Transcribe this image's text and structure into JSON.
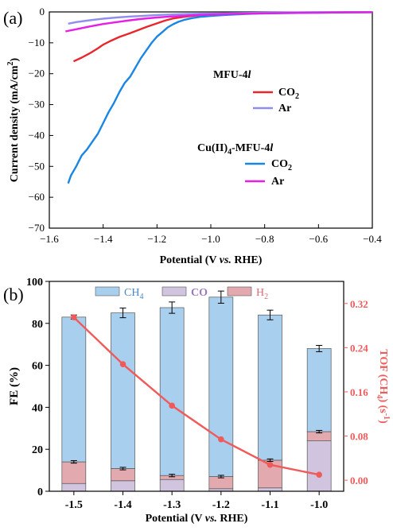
{
  "chart_data": [
    {
      "panel": "(a)",
      "type": "line",
      "xlabel": "Potential (V vs. RHE)",
      "ylabel": "Current density (mA/cm²)",
      "xlim": [
        -1.6,
        -0.4
      ],
      "ylim": [
        -70,
        0
      ],
      "xticks": [
        -1.6,
        -1.4,
        -1.2,
        -1.0,
        -0.8,
        -0.6,
        -0.4
      ],
      "yticks": [
        0,
        -10,
        -20,
        -30,
        -40,
        -50,
        -60,
        -70
      ],
      "legend_groups": [
        "MFU-4l",
        "Cu(II)4-MFU-4l"
      ],
      "series": [
        {
          "name": "CO2",
          "group": "MFU-4l",
          "color": "#e8262b",
          "x": [
            -1.51,
            -1.48,
            -1.45,
            -1.42,
            -1.4,
            -1.37,
            -1.34,
            -1.3,
            -1.27,
            -1.24,
            -1.2,
            -1.17,
            -1.14,
            -1.1,
            -1.06,
            -1.02,
            -0.98,
            -0.94,
            -0.9,
            -0.85,
            -0.8,
            -0.7,
            -0.6,
            -0.5,
            -0.4
          ],
          "y": [
            -16.0,
            -14.8,
            -13.4,
            -11.8,
            -10.6,
            -9.3,
            -8.1,
            -6.9,
            -5.9,
            -4.9,
            -3.7,
            -2.8,
            -2.1,
            -1.6,
            -1.2,
            -0.95,
            -0.8,
            -0.65,
            -0.55,
            -0.45,
            -0.35,
            -0.25,
            -0.18,
            -0.12,
            -0.08
          ]
        },
        {
          "name": "Ar",
          "group": "MFU-4l",
          "color": "#8f8ef0",
          "x": [
            -1.53,
            -1.5,
            -1.45,
            -1.4,
            -1.35,
            -1.3,
            -1.25,
            -1.2,
            -1.15,
            -1.1,
            -1.05,
            -1.0,
            -0.9,
            -0.8,
            -0.7,
            -0.6,
            -0.5,
            -0.4
          ],
          "y": [
            -3.8,
            -3.3,
            -2.7,
            -2.2,
            -1.8,
            -1.5,
            -1.25,
            -1.0,
            -0.85,
            -0.7,
            -0.6,
            -0.5,
            -0.35,
            -0.25,
            -0.18,
            -0.12,
            -0.08,
            -0.05
          ]
        },
        {
          "name": "CO2",
          "group": "Cu(II)4-MFU-4l",
          "color": "#1a86e4",
          "x": [
            -1.53,
            -1.52,
            -1.5,
            -1.48,
            -1.46,
            -1.44,
            -1.42,
            -1.4,
            -1.38,
            -1.36,
            -1.34,
            -1.32,
            -1.3,
            -1.28,
            -1.26,
            -1.24,
            -1.22,
            -1.2,
            -1.18,
            -1.16,
            -1.14,
            -1.12,
            -1.1,
            -1.07,
            -1.04,
            -1.0,
            -0.95,
            -0.9,
            -0.85,
            -0.8,
            -0.7,
            -0.6,
            -0.5,
            -0.4
          ],
          "y": [
            -55.5,
            -53.0,
            -50.0,
            -46.5,
            -44.5,
            -42.0,
            -39.5,
            -36.0,
            -32.5,
            -29.5,
            -26.0,
            -23.0,
            -21.0,
            -18.0,
            -15.0,
            -12.5,
            -10.0,
            -8.0,
            -6.5,
            -5.0,
            -4.0,
            -3.2,
            -2.6,
            -2.0,
            -1.6,
            -1.3,
            -1.0,
            -0.8,
            -0.6,
            -0.5,
            -0.35,
            -0.25,
            -0.15,
            -0.1
          ]
        },
        {
          "name": "Ar",
          "group": "Cu(II)4-MFU-4l",
          "color": "#e61ee6",
          "x": [
            -1.54,
            -1.5,
            -1.45,
            -1.4,
            -1.35,
            -1.3,
            -1.25,
            -1.2,
            -1.15,
            -1.1,
            -1.05,
            -1.0,
            -0.9,
            -0.8,
            -0.7,
            -0.6,
            -0.5,
            -0.4
          ],
          "y": [
            -6.3,
            -5.6,
            -4.7,
            -3.9,
            -3.3,
            -2.7,
            -2.2,
            -1.8,
            -1.5,
            -1.25,
            -1.0,
            -0.85,
            -0.6,
            -0.45,
            -0.32,
            -0.22,
            -0.15,
            -0.1
          ]
        }
      ]
    },
    {
      "panel": "(b)",
      "type": "bar",
      "stacked": true,
      "xlabel": "Potential (V vs. RHE)",
      "ylabel": "FE (%)",
      "y2label": "TOF (CH4) (s-1)",
      "categories": [
        "-1.5",
        "-1.4",
        "-1.3",
        "-1.2",
        "-1.1",
        "-1.0"
      ],
      "ylim": [
        0,
        100
      ],
      "yticks": [
        0,
        20,
        40,
        60,
        80,
        100
      ],
      "y2lim": [
        -0.02,
        0.36
      ],
      "y2ticks": [
        "0.00",
        "0.08",
        "0.16",
        "0.24",
        "0.32"
      ],
      "legend": [
        "CH4",
        "CO",
        "H2"
      ],
      "colors": {
        "CH4": "#a9cfee",
        "CO": "#d1c4de",
        "H2": "#e2a9ae",
        "TOF": "#f05a5a"
      },
      "fe_total": [
        83.0,
        85.0,
        87.5,
        92.5,
        84.0,
        68.0
      ],
      "fe_total_err": [
        1.0,
        2.3,
        2.7,
        2.9,
        2.3,
        1.5
      ],
      "fe_co": [
        3.7,
        5.0,
        5.6,
        1.2,
        1.6,
        24.0
      ],
      "fe_h2": [
        10.3,
        5.8,
        1.9,
        5.8,
        13.2,
        4.4
      ],
      "fe_ch4": [
        69.0,
        74.2,
        80.0,
        85.5,
        69.2,
        39.6
      ],
      "tof_ch4": [
        0.295,
        0.21,
        0.135,
        0.074,
        0.028,
        0.01
      ]
    }
  ]
}
